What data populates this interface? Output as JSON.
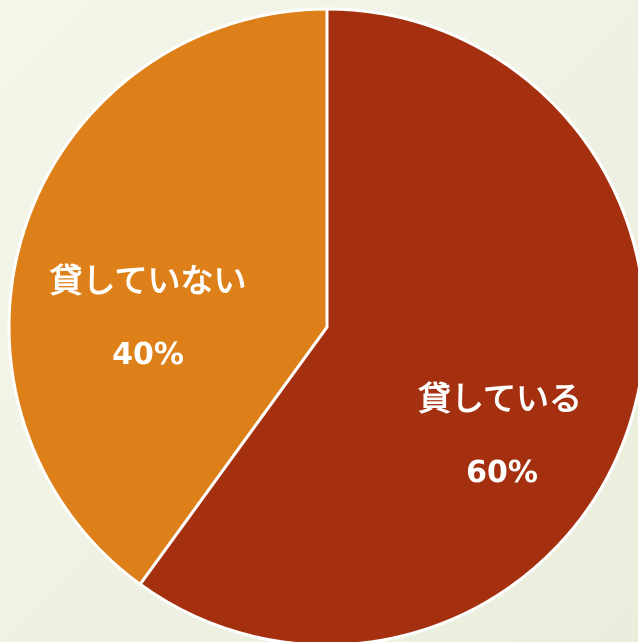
{
  "chart_data": {
    "type": "pie",
    "title": "",
    "slices": [
      {
        "label": "貸している",
        "value": 60,
        "value_label": "60%",
        "color": "#a5300f"
      },
      {
        "label": "貸していない",
        "value": 40,
        "value_label": "40%",
        "color": "#dd8019"
      }
    ],
    "legend": "none",
    "border_color": "#ffffff"
  }
}
